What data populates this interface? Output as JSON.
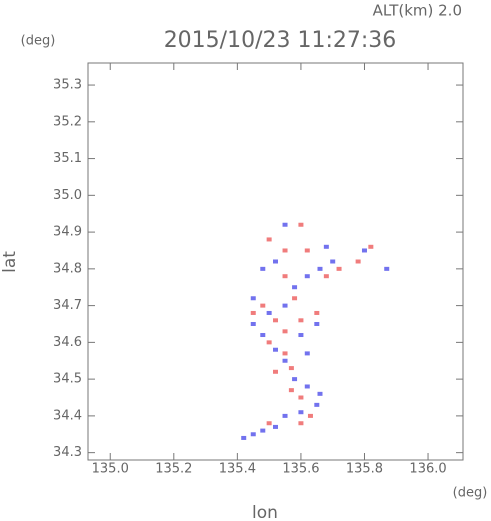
{
  "chart_data": {
    "type": "scatter",
    "title": "2015/10/23 11:27:36",
    "subtitle": "ALT(km) 2.0",
    "x_label": "lon",
    "y_label": "lat",
    "x_unit": "(deg)",
    "y_unit": "(deg)",
    "xlim": [
      134.93,
      136.11
    ],
    "ylim": [
      34.28,
      35.36
    ],
    "xticks": [
      {
        "value": 135.0,
        "label": "135.0"
      },
      135.2,
      135.4,
      135.6,
      135.8,
      {
        "value": 136.0,
        "label": "136.0"
      }
    ],
    "yticks": [
      34.3,
      34.4,
      34.5,
      34.6,
      34.7,
      34.8,
      34.9,
      {
        "value": 35.0,
        "label": "35.0"
      },
      35.1,
      35.2,
      35.3
    ],
    "series": [
      {
        "color": "#7272ee",
        "x": [
          135.42,
          135.45,
          135.48,
          135.52,
          135.55,
          135.6,
          135.65,
          135.66,
          135.62,
          135.58,
          135.55,
          135.52,
          135.48,
          135.45,
          135.5,
          135.55,
          135.45,
          135.6,
          135.65,
          135.58,
          135.62,
          135.66,
          135.7,
          135.87,
          135.8,
          135.52,
          135.48,
          135.55,
          135.68,
          135.62
        ],
        "y": [
          34.34,
          34.35,
          34.36,
          34.37,
          34.4,
          34.41,
          34.43,
          34.46,
          34.48,
          34.5,
          34.55,
          34.58,
          34.62,
          34.65,
          34.68,
          34.7,
          34.72,
          34.62,
          34.65,
          34.75,
          34.78,
          34.8,
          34.82,
          34.8,
          34.85,
          34.82,
          34.8,
          34.92,
          34.86,
          34.57
        ]
      },
      {
        "color": "#f07c7c",
        "x": [
          135.5,
          135.6,
          135.63,
          135.6,
          135.57,
          135.52,
          135.55,
          135.5,
          135.55,
          135.6,
          135.52,
          135.48,
          135.58,
          135.45,
          135.65,
          135.55,
          135.62,
          135.72,
          135.78,
          135.82,
          135.6,
          135.55,
          135.68,
          135.5,
          135.57
        ],
        "y": [
          34.38,
          34.38,
          34.4,
          34.45,
          34.47,
          34.52,
          34.57,
          34.6,
          34.63,
          34.66,
          34.66,
          34.7,
          34.72,
          34.68,
          34.68,
          34.78,
          34.85,
          34.8,
          34.82,
          34.86,
          34.92,
          34.85,
          34.78,
          34.88,
          34.53
        ]
      }
    ]
  }
}
